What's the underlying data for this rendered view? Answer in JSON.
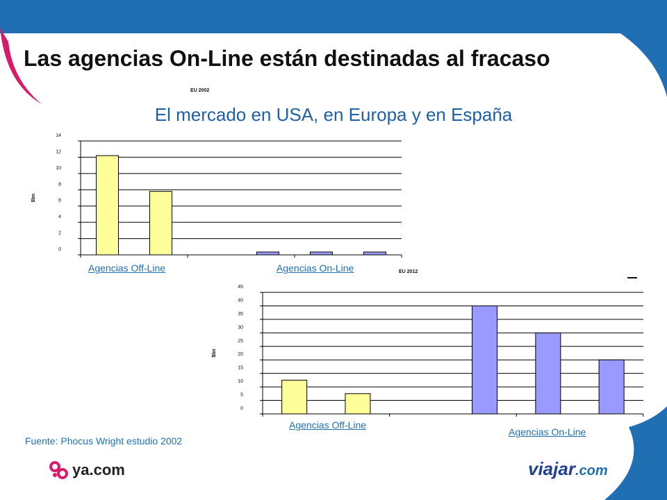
{
  "slide": {
    "title": "Las agencias On-Line están destinadas al fracaso",
    "subtitle": "El mercado en USA, en Europa y en España",
    "source": "Fuente: Phocus Wright estudio 2002",
    "logo_left": "ya.com",
    "logo_right_main": "viajar",
    "logo_right_suffix": ".com"
  },
  "colors": {
    "top_band": "#1f6fb2",
    "accent_pink": "#d81b6b",
    "offline_bar": "#ffff99",
    "online_bar": "#9999ff",
    "link": "#1f6fb2"
  },
  "chart_data": [
    {
      "type": "bar",
      "title": "EU 2002",
      "ylabel": "$bn",
      "ylim": [
        0,
        14
      ],
      "yticks": [
        0,
        2,
        4,
        6,
        8,
        10,
        12,
        14
      ],
      "values": [
        12.2,
        7.8,
        0,
        0.35,
        0.35,
        0.35
      ],
      "bar_colors": [
        "#ffff99",
        "#ffff99",
        null,
        "#9999ff",
        "#9999ff",
        "#9999ff"
      ],
      "category_groups": [
        "Agencias Off-Line",
        "Agencias On-Line"
      ],
      "grid": true
    },
    {
      "type": "bar",
      "title": "EU 2012",
      "ylabel": "$bn",
      "ylim": [
        0,
        45
      ],
      "yticks": [
        0,
        5,
        10,
        15,
        20,
        25,
        30,
        35,
        40,
        45
      ],
      "values": [
        12.5,
        7.5,
        0,
        40,
        30,
        20
      ],
      "bar_colors": [
        "#ffff99",
        "#ffff99",
        null,
        "#9999ff",
        "#9999ff",
        "#9999ff"
      ],
      "category_groups": [
        "Agencias Off-Line",
        "Agencias On-Line"
      ],
      "grid": true
    }
  ]
}
